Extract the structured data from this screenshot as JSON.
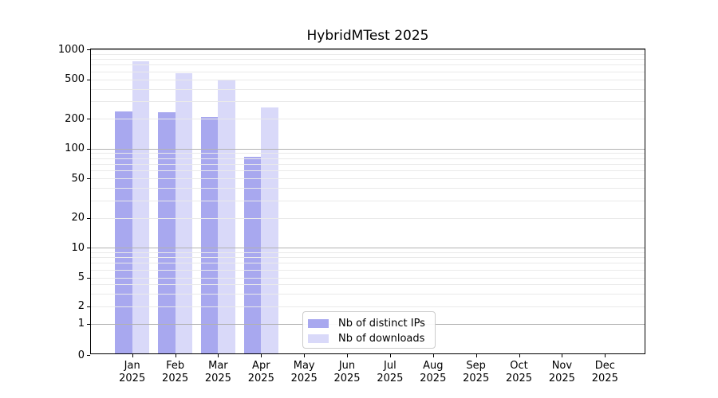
{
  "chart_data": {
    "type": "bar",
    "title": "HybridMTest 2025",
    "categories": [
      "Jan",
      "Feb",
      "Mar",
      "Apr",
      "May",
      "Jun",
      "Jul",
      "Aug",
      "Sep",
      "Oct",
      "Nov",
      "Dec"
    ],
    "category_year": "2025",
    "series": [
      {
        "name": "Nb of distinct IPs",
        "color": "#a8a8ef",
        "values": [
          230,
          224,
          200,
          80,
          0,
          0,
          0,
          0,
          0,
          0,
          0,
          0
        ]
      },
      {
        "name": "Nb of downloads",
        "color": "#d9d9f9",
        "values": [
          730,
          550,
          470,
          250,
          0,
          0,
          0,
          0,
          0,
          0,
          0,
          0
        ]
      }
    ],
    "y_axis": {
      "scale": "symlog",
      "ylim": [
        0,
        1000
      ],
      "tick_values": [
        1000,
        500,
        200,
        100,
        50,
        20,
        10,
        5,
        2,
        1,
        0
      ],
      "major_grid_values": [
        1,
        10,
        100,
        1000
      ],
      "minor_grid_subs": [
        2,
        3,
        4,
        5,
        6,
        7,
        8,
        9
      ],
      "minor_grid_decades": [
        1,
        10,
        100
      ]
    },
    "x_axis": {
      "tick_label_lines": 2
    },
    "legend": {
      "position": "lower center-left"
    },
    "grid": {
      "major": true,
      "minor": true
    }
  },
  "colors": {
    "background": "#ffffff",
    "spine": "#000000",
    "text": "#000000",
    "major_grid": "#b2b2b2",
    "minor_grid": "#eaeaea",
    "legend_border": "#cccccc"
  }
}
